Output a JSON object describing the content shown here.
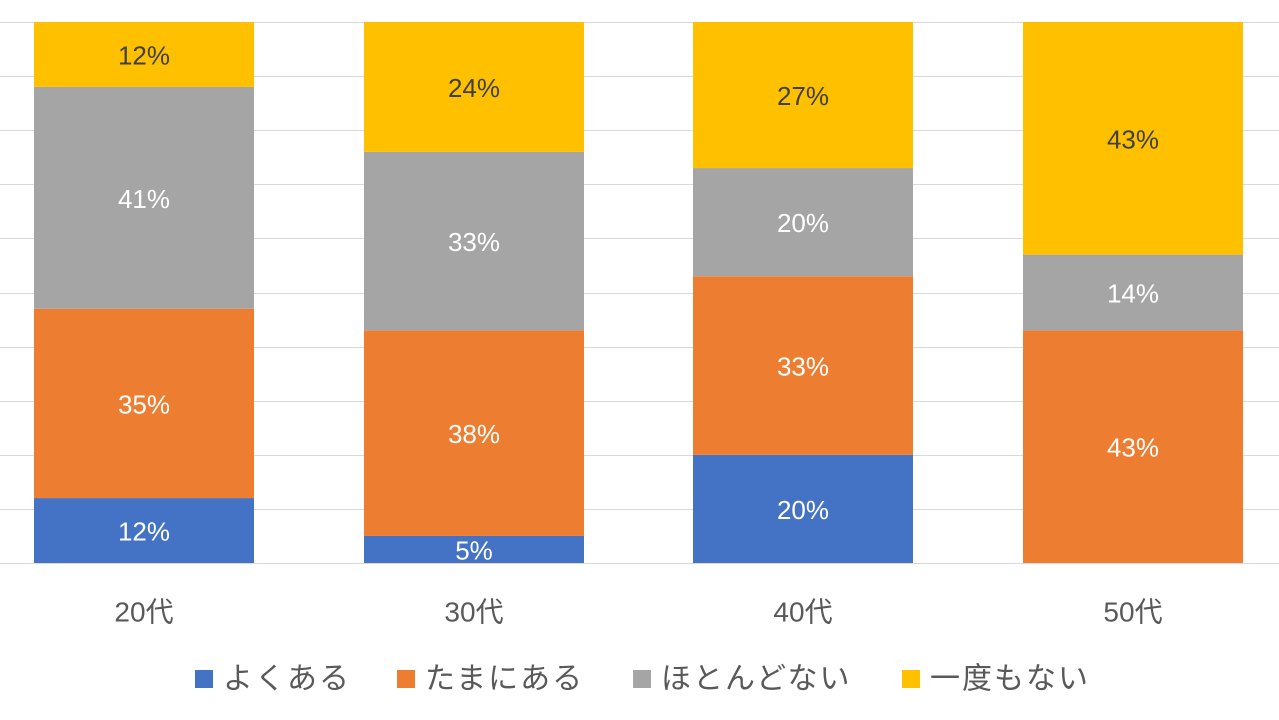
{
  "chart_data": {
    "type": "bar",
    "stacked": true,
    "percent_stacked": true,
    "categories": [
      "20代",
      "30代",
      "40代",
      "50代"
    ],
    "series": [
      {
        "name": "よくある",
        "color": "#4472C4",
        "values": [
          12,
          5,
          20,
          0
        ],
        "labels": [
          "12%",
          "5%",
          "20%",
          ""
        ]
      },
      {
        "name": "たまにある",
        "color": "#ED7D31",
        "values": [
          35,
          38,
          33,
          43
        ],
        "labels": [
          "35%",
          "38%",
          "33%",
          "43%"
        ]
      },
      {
        "name": "ほとんどない",
        "color": "#A5A5A5",
        "values": [
          41,
          33,
          20,
          14
        ],
        "labels": [
          "41%",
          "33%",
          "20%",
          "14%"
        ]
      },
      {
        "name": "一度もない",
        "color": "#FFC000",
        "values": [
          12,
          24,
          27,
          43
        ],
        "labels": [
          "12%",
          "24%",
          "27%",
          "43%"
        ]
      }
    ],
    "ylim": [
      0,
      100
    ],
    "grid": true,
    "legend_position": "bottom",
    "title": "",
    "xlabel": "",
    "ylabel": ""
  }
}
